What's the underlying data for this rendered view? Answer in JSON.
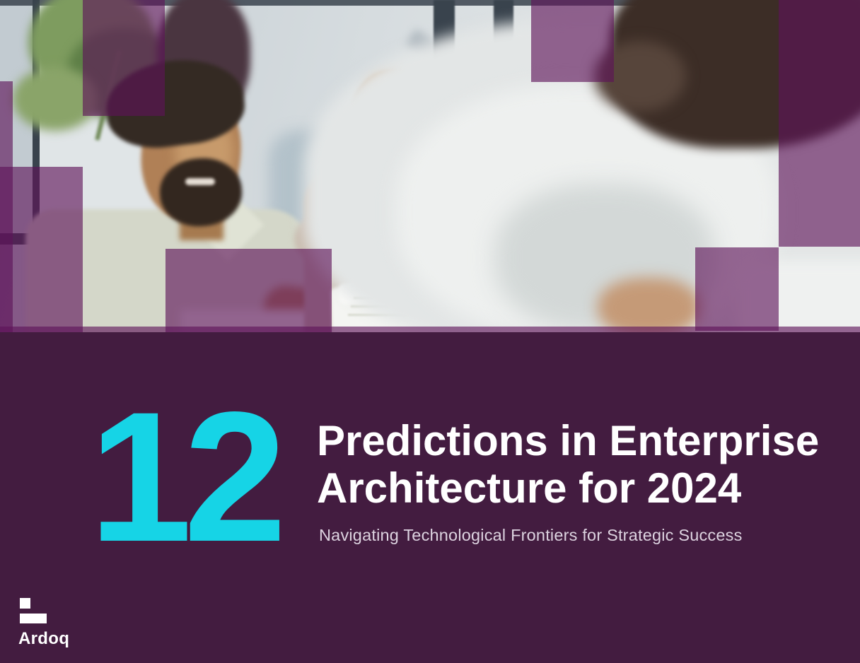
{
  "cover": {
    "stat_number": "12",
    "title_lines": [
      "Predictions in Enterprise",
      "Architecture for 2024"
    ],
    "subtitle": "Navigating Technological Frontiers for Strategic Success",
    "brand_name": "Ardoq",
    "colors": {
      "accent_cyan": "#16D4E6",
      "deep_purple": "#431C40",
      "overlay_purple": "rgba(93,19,89,0.63)"
    }
  }
}
